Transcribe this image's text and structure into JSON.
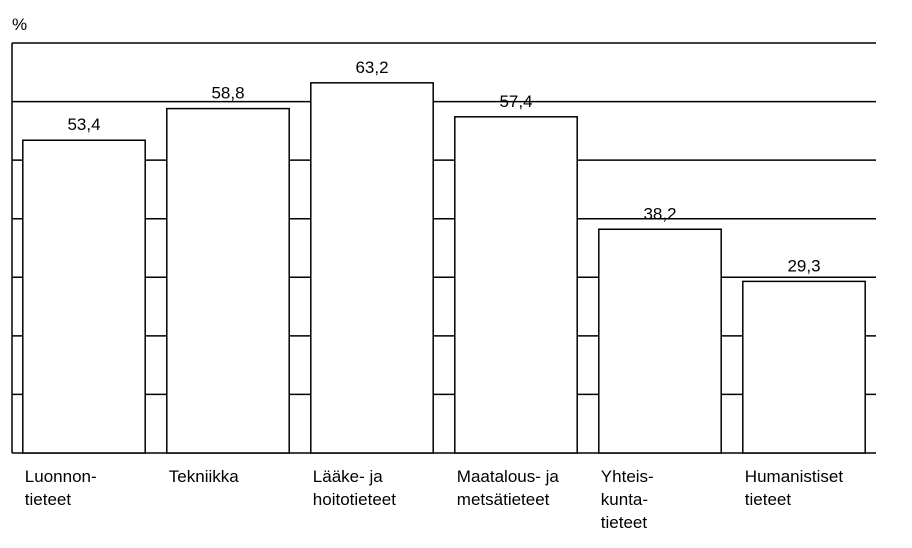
{
  "chart_data": {
    "type": "bar",
    "y_axis_label": "%",
    "categories": [
      "Luonnon-\ntieteet",
      "Tekniikka",
      "Lääke- ja\nhoitotieteet",
      "Maatalous- ja\nmetsätieteet",
      "Yhteis-\nkunta-\ntieteet",
      "Humanistiset\ntieteet"
    ],
    "values": [
      53.4,
      58.8,
      63.2,
      57.4,
      38.2,
      29.3
    ],
    "value_labels": [
      "53,4",
      "58,8",
      "63,2",
      "57,4",
      "38,2",
      "29,3"
    ],
    "color": "#ffffff",
    "ylim": [
      0,
      70
    ],
    "yticks": [
      0,
      10,
      20,
      30,
      40,
      50,
      60,
      70
    ],
    "grid": true
  }
}
